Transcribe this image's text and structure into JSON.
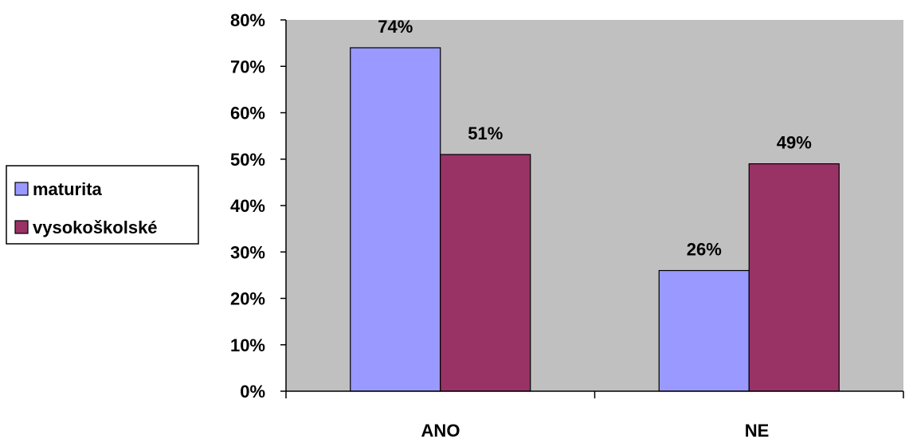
{
  "chart_data": {
    "type": "bar",
    "categories": [
      "ANO",
      "NE"
    ],
    "series": [
      {
        "name": "maturita",
        "values": [
          74,
          26
        ],
        "labels": [
          "74%",
          "26%"
        ],
        "color": "#9999ff"
      },
      {
        "name": "vysokoškolské",
        "values": [
          51,
          49
        ],
        "labels": [
          "51%",
          "49%"
        ],
        "color": "#993366"
      }
    ],
    "ylim": [
      0,
      80
    ],
    "yticks": [
      "0%",
      "10%",
      "20%",
      "30%",
      "40%",
      "50%",
      "60%",
      "70%",
      "80%"
    ],
    "plot_background": "#c0c0c0",
    "grid": false,
    "legend_position": "left"
  }
}
